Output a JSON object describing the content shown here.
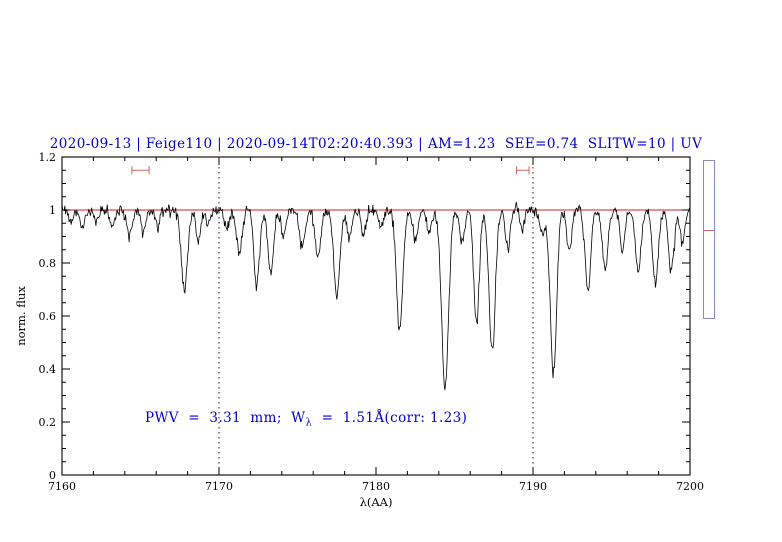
{
  "header": {
    "title": "2020-09-13 | Feige110 | 2020-09-14T02:20:40.393 | AM=1.23  SEE=0.74  SLITW=10 | UV"
  },
  "annotation": {
    "prefix": "PWV  =  3.31  mm;  W",
    "sub": "λ",
    "suffix": "  =  1.51Å(corr: 1.23)",
    "color": "#0000cc"
  },
  "chart_data": {
    "type": "line",
    "title": "2020-09-13 | Feige110 | 2020-09-14T02:20:40.393 | AM=1.23  SEE=0.74  SLITW=10 | UV",
    "xlabel": "λ(AA)",
    "ylabel": "norm. flux",
    "xlim": [
      7160,
      7200
    ],
    "ylim": [
      0,
      1.2
    ],
    "x_major_ticks": [
      7160,
      7170,
      7180,
      7190,
      7200
    ],
    "x_tick_labels": [
      "7160",
      "7170",
      "7180",
      "7190",
      "7200"
    ],
    "x_minor_step": 2,
    "y_major_ticks": [
      0,
      0.2,
      0.4,
      0.6,
      0.8,
      1,
      1.2
    ],
    "y_tick_labels": [
      "0",
      "0.2",
      "0.4",
      "0.6",
      "0.8",
      "1",
      "1.2"
    ],
    "y_minor_step": 0.05,
    "grid": "off",
    "legend": "none",
    "continuum_level": 1.0,
    "continuum_color": "#cc2222",
    "spectrum_color": "#000000",
    "dotted_vlines": [
      7170,
      7190
    ],
    "noise_sigma": 0.011,
    "sample_step": 0.045,
    "absorption_lines": [
      {
        "center": 7160.6,
        "depth": 0.04,
        "width": 0.15
      },
      {
        "center": 7161.3,
        "depth": 0.07,
        "width": 0.15
      },
      {
        "center": 7162.2,
        "depth": 0.05,
        "width": 0.15
      },
      {
        "center": 7163.2,
        "depth": 0.06,
        "width": 0.15
      },
      {
        "center": 7164.3,
        "depth": 0.09,
        "width": 0.18
      },
      {
        "center": 7165.2,
        "depth": 0.08,
        "width": 0.15
      },
      {
        "center": 7166.1,
        "depth": 0.06,
        "width": 0.15
      },
      {
        "center": 7167.8,
        "depth": 0.3,
        "width": 0.2
      },
      {
        "center": 7168.7,
        "depth": 0.12,
        "width": 0.15
      },
      {
        "center": 7169.3,
        "depth": 0.06,
        "width": 0.12
      },
      {
        "center": 7170.5,
        "depth": 0.07,
        "width": 0.15
      },
      {
        "center": 7171.3,
        "depth": 0.16,
        "width": 0.18
      },
      {
        "center": 7172.4,
        "depth": 0.28,
        "width": 0.18
      },
      {
        "center": 7173.3,
        "depth": 0.24,
        "width": 0.18
      },
      {
        "center": 7174.1,
        "depth": 0.1,
        "width": 0.15
      },
      {
        "center": 7175.3,
        "depth": 0.14,
        "width": 0.18
      },
      {
        "center": 7176.3,
        "depth": 0.17,
        "width": 0.18
      },
      {
        "center": 7177.5,
        "depth": 0.32,
        "width": 0.2
      },
      {
        "center": 7178.3,
        "depth": 0.1,
        "width": 0.15
      },
      {
        "center": 7179.2,
        "depth": 0.09,
        "width": 0.15
      },
      {
        "center": 7180.3,
        "depth": 0.07,
        "width": 0.15
      },
      {
        "center": 7181.5,
        "depth": 0.45,
        "width": 0.2
      },
      {
        "center": 7182.5,
        "depth": 0.12,
        "width": 0.15
      },
      {
        "center": 7183.4,
        "depth": 0.08,
        "width": 0.15
      },
      {
        "center": 7184.4,
        "depth": 0.68,
        "width": 0.22
      },
      {
        "center": 7185.5,
        "depth": 0.12,
        "width": 0.15
      },
      {
        "center": 7186.4,
        "depth": 0.42,
        "width": 0.18
      },
      {
        "center": 7187.4,
        "depth": 0.54,
        "width": 0.2
      },
      {
        "center": 7188.4,
        "depth": 0.15,
        "width": 0.15
      },
      {
        "center": 7189.3,
        "depth": 0.08,
        "width": 0.12
      },
      {
        "center": 7190.6,
        "depth": 0.1,
        "width": 0.15
      },
      {
        "center": 7191.3,
        "depth": 0.62,
        "width": 0.2
      },
      {
        "center": 7192.3,
        "depth": 0.16,
        "width": 0.15
      },
      {
        "center": 7193.5,
        "depth": 0.3,
        "width": 0.18
      },
      {
        "center": 7194.6,
        "depth": 0.22,
        "width": 0.18
      },
      {
        "center": 7195.7,
        "depth": 0.16,
        "width": 0.15
      },
      {
        "center": 7196.7,
        "depth": 0.24,
        "width": 0.18
      },
      {
        "center": 7197.8,
        "depth": 0.28,
        "width": 0.18
      },
      {
        "center": 7198.8,
        "depth": 0.22,
        "width": 0.18
      },
      {
        "center": 7199.5,
        "depth": 0.12,
        "width": 0.15
      }
    ],
    "top_markers": [
      {
        "center": 7165.0,
        "halfwidth": 0.55,
        "y": 1.15
      },
      {
        "center": 7189.35,
        "halfwidth": 0.4,
        "y": 1.15
      }
    ],
    "marker_color": "#cc6666",
    "annotation_text": "PWV = 3.31 mm; Wλ = 1.51Å(corr: 1.23)",
    "side_panel": {
      "flux_top": 1.19,
      "flux_bottom": 0.59,
      "marker_flux": 0.93,
      "border_color": "#8888cc",
      "marker_color": "#cc6666"
    }
  }
}
